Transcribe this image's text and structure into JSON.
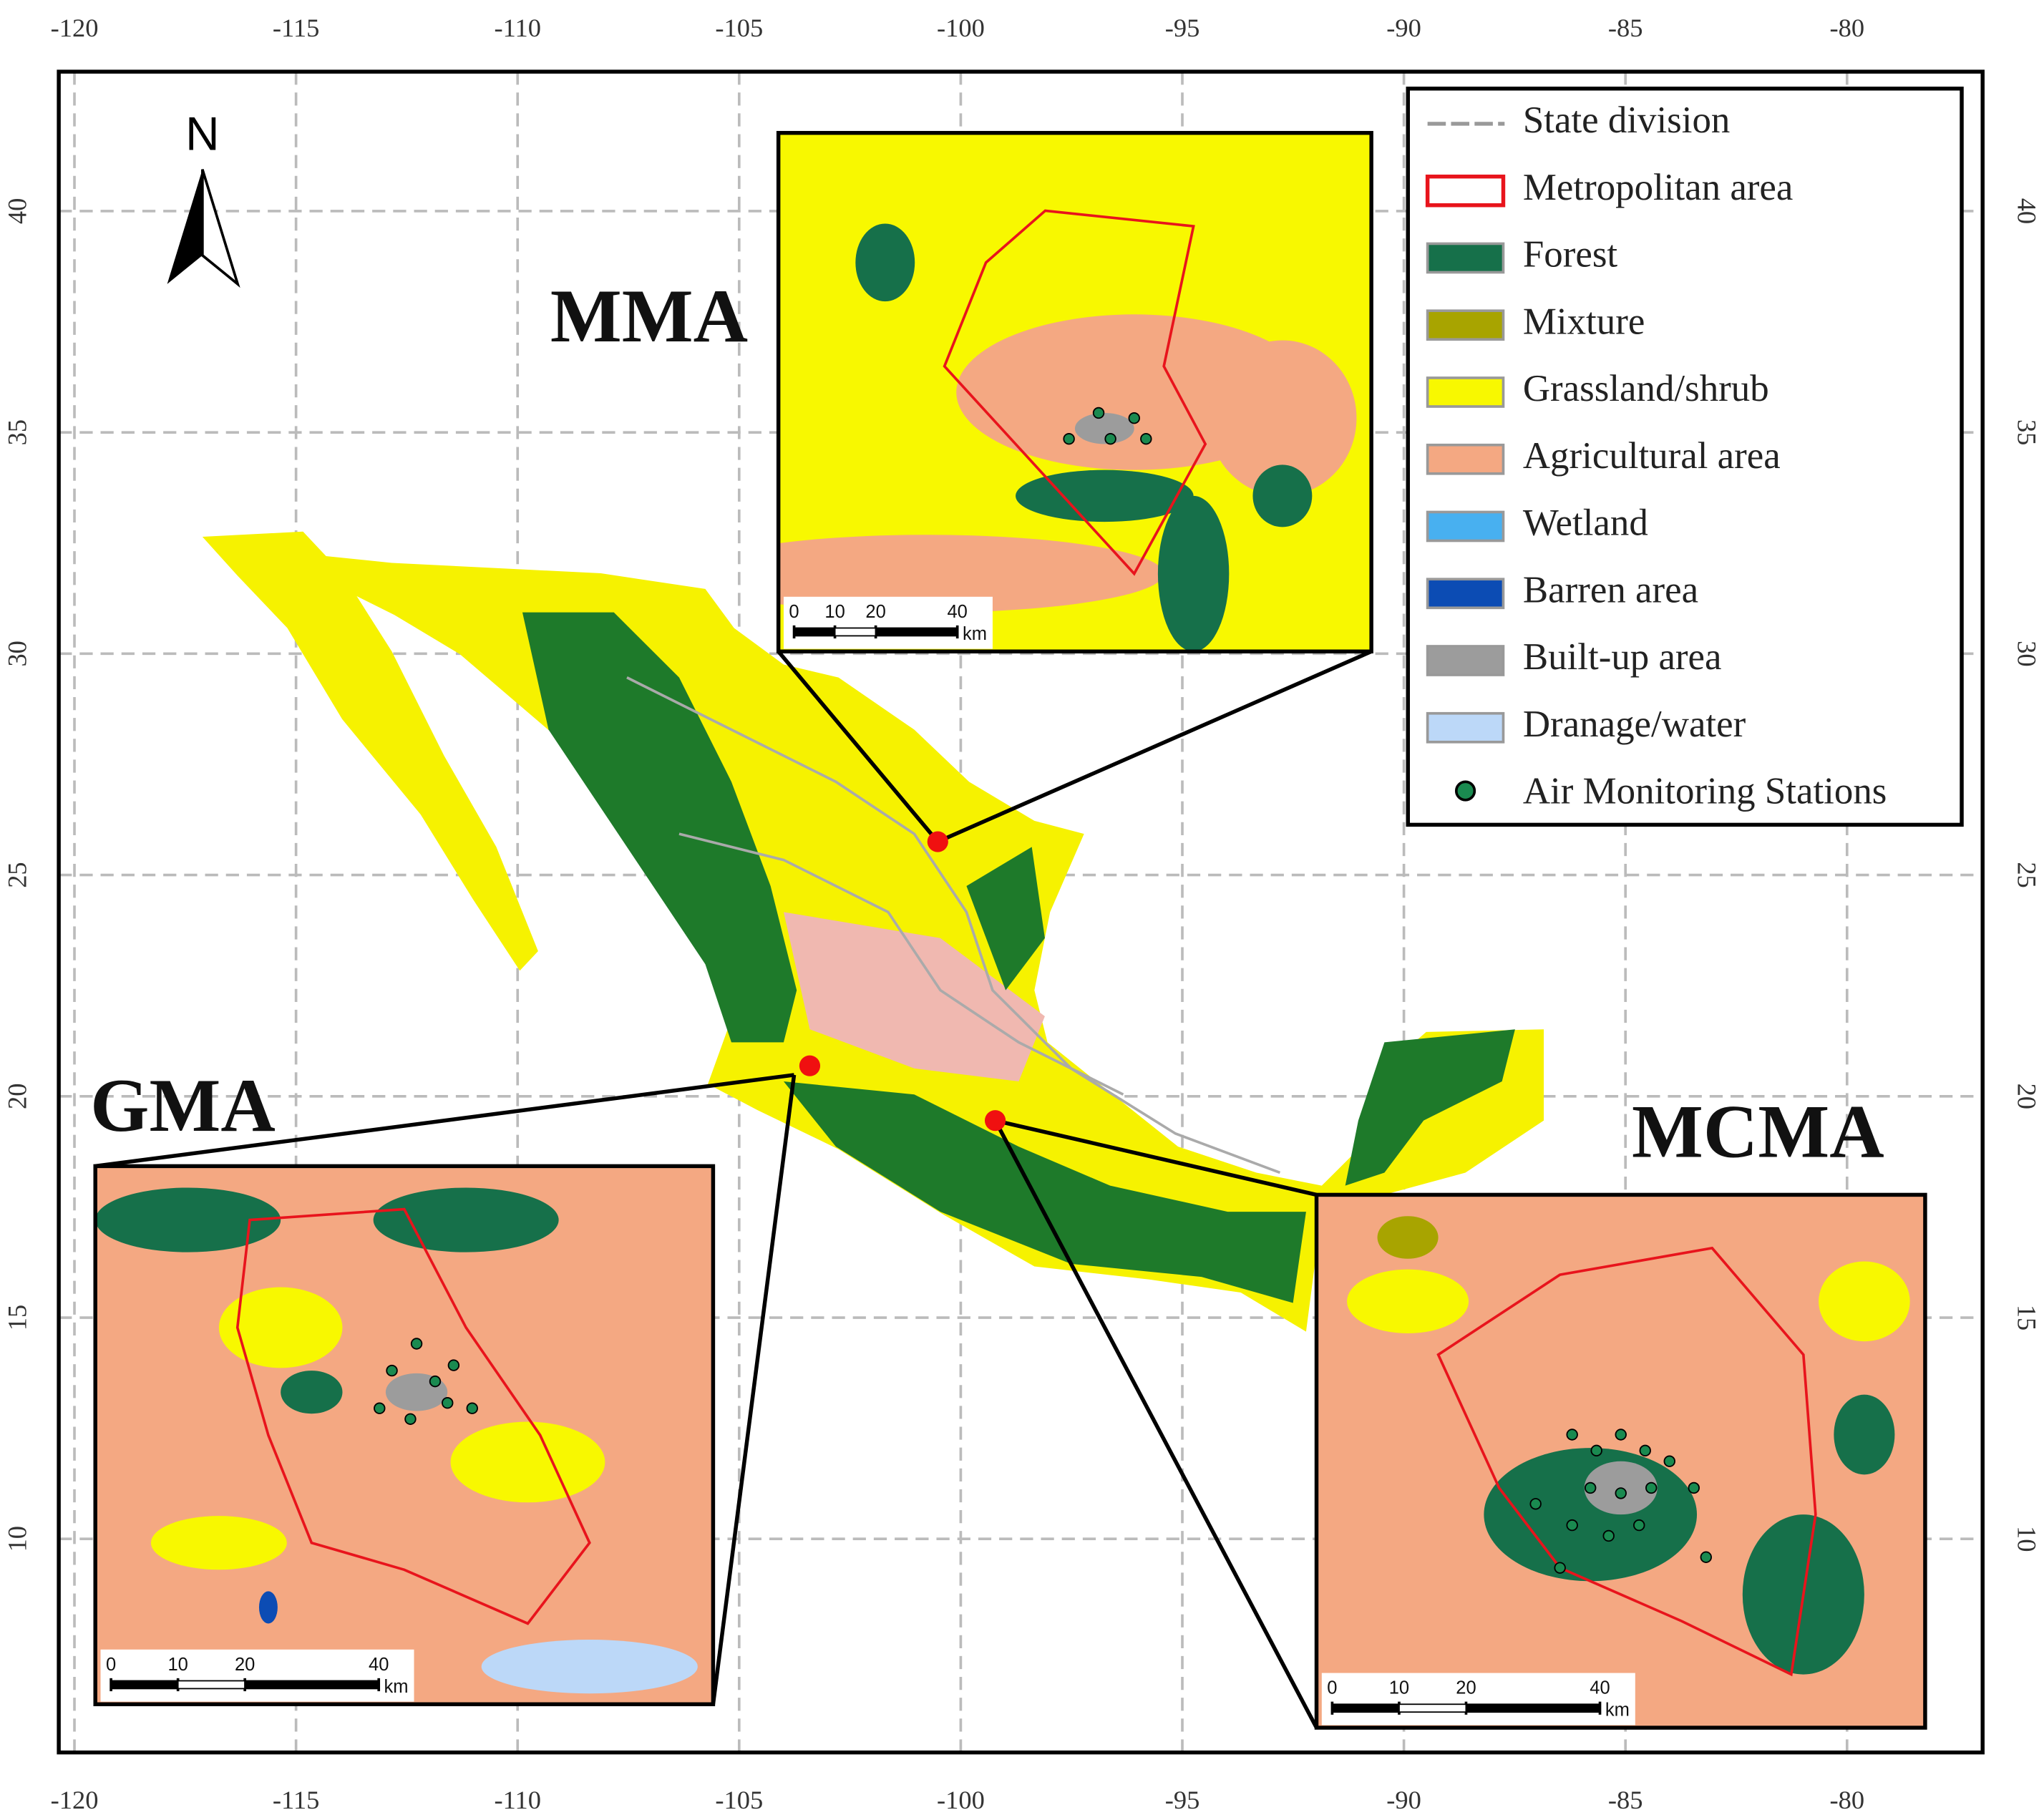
{
  "axes": {
    "longitude_ticks": [
      -120,
      -115,
      -110,
      -105,
      -100,
      -95,
      -90,
      -85,
      -80
    ],
    "latitude_ticks": [
      10,
      15,
      20,
      25,
      30,
      35,
      40
    ]
  },
  "north_label": "N",
  "regions": [
    {
      "label": "MMA"
    },
    {
      "label": "GMA"
    },
    {
      "label": "MCMA"
    }
  ],
  "legend": [
    {
      "label": "State division",
      "symbol": "line",
      "color": "#999999"
    },
    {
      "label": "Metropolitan area",
      "symbol": "outline",
      "color": "#e8141c"
    },
    {
      "label": "Forest",
      "symbol": "fill",
      "color": "#16704a"
    },
    {
      "label": "Mixture",
      "symbol": "fill",
      "color": "#a8a400"
    },
    {
      "label": "Grassland/shrub",
      "symbol": "fill",
      "color": "#f8f800"
    },
    {
      "label": "Agricultural area",
      "symbol": "fill",
      "color": "#f4a882"
    },
    {
      "label": "Wetland",
      "symbol": "fill",
      "color": "#48b0f0"
    },
    {
      "label": "Barren area",
      "symbol": "fill",
      "color": "#0c4cb4"
    },
    {
      "label": "Built-up area",
      "symbol": "fill",
      "color": "#9c9c9c"
    },
    {
      "label": "Dranage/water",
      "symbol": "fill",
      "color": "#bcd8f8"
    },
    {
      "label": "Air Monitoring Stations",
      "symbol": "point",
      "color": "#1a8a50"
    }
  ],
  "scale_bar": {
    "ticks": [
      0,
      10,
      20,
      40
    ],
    "unit": "km"
  }
}
